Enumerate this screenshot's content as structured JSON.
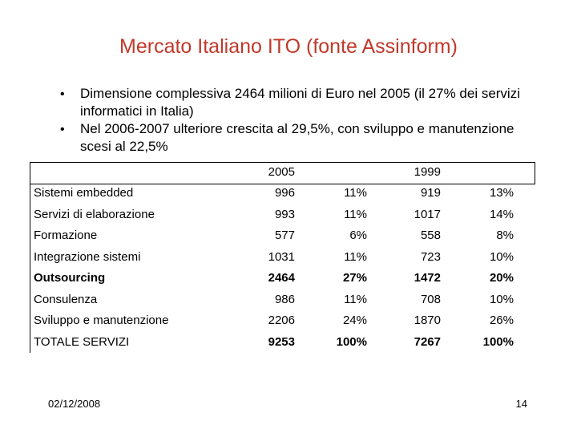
{
  "header": {
    "title": "Mercato Italiano ITO (fonte Assinform)"
  },
  "bullets": [
    "Dimensione complessiva 2464 milioni di Euro nel 2005 (il 27% dei servizi informatici in Italia)",
    "Nel 2006-2007 ulteriore crescita al 29,5%, con sviluppo e manutenzione scesi al 22,5%"
  ],
  "table": {
    "years": [
      "2005",
      "1999"
    ],
    "rows": [
      {
        "label": "Sistemi embedded",
        "cells": [
          "996",
          "11%",
          "919",
          "13%"
        ],
        "bold_label": false,
        "bold_values": false
      },
      {
        "label": "Servizi di elaborazione",
        "cells": [
          "993",
          "11%",
          "1017",
          "14%"
        ],
        "bold_label": false,
        "bold_values": false
      },
      {
        "label": "Formazione",
        "cells": [
          "577",
          "6%",
          "558",
          "8%"
        ],
        "bold_label": false,
        "bold_values": false
      },
      {
        "label": "Integrazione sistemi",
        "cells": [
          "1031",
          "11%",
          "723",
          "10%"
        ],
        "bold_label": false,
        "bold_values": false
      },
      {
        "label": "Outsourcing",
        "cells": [
          "2464",
          "27%",
          "1472",
          "20%"
        ],
        "bold_label": true,
        "bold_values": true
      },
      {
        "label": "Consulenza",
        "cells": [
          "986",
          "11%",
          "708",
          "10%"
        ],
        "bold_label": false,
        "bold_values": false
      },
      {
        "label": "Sviluppo e manutenzione",
        "cells": [
          "2206",
          "24%",
          "1870",
          "26%"
        ],
        "bold_label": false,
        "bold_values": false
      },
      {
        "label": "TOTALE SERVIZI",
        "cells": [
          "9253",
          "100%",
          "7267",
          "100%"
        ],
        "bold_label": false,
        "bold_values": true
      }
    ]
  },
  "footer": {
    "date": "02/12/2008",
    "page": "14"
  }
}
